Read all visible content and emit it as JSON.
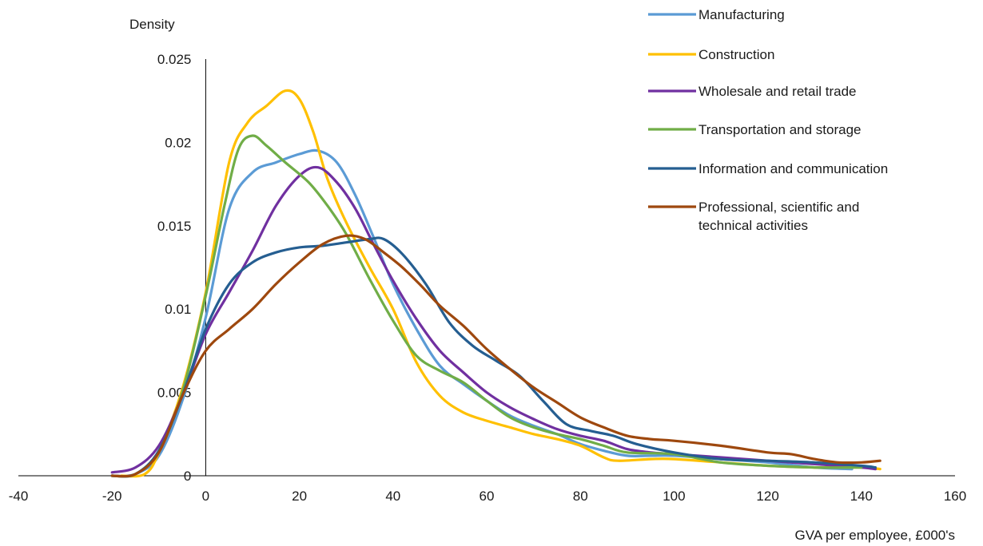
{
  "chart_data": {
    "type": "line",
    "title": "",
    "ylabel": "Density",
    "xlabel": "GVA per employee, £000's",
    "xlim": [
      -40,
      160
    ],
    "ylim": [
      0,
      0.025
    ],
    "xticks": [
      -40,
      -20,
      0,
      20,
      40,
      60,
      80,
      100,
      120,
      140,
      160
    ],
    "yticks": [
      0,
      0.005,
      0.01,
      0.015,
      0.02,
      0.025
    ],
    "xtick_labels": [
      "-40",
      "-20",
      "0",
      "20",
      "40",
      "60",
      "80",
      "100",
      "120",
      "140",
      "160"
    ],
    "ytick_labels": [
      "0",
      "0.005",
      "0.01",
      "0.015",
      "0.02",
      "0.025"
    ],
    "grid": false,
    "legend_position": "top-right",
    "series": [
      {
        "name": "Manufacturing",
        "color": "#5b9bd5",
        "points": [
          [
            -20,
            0
          ],
          [
            -15,
            0.0001
          ],
          [
            -10,
            0.0012
          ],
          [
            -5,
            0.0045
          ],
          [
            0,
            0.0095
          ],
          [
            5,
            0.016
          ],
          [
            10,
            0.0182
          ],
          [
            15,
            0.0188
          ],
          [
            20,
            0.0193
          ],
          [
            24,
            0.0195
          ],
          [
            28,
            0.0188
          ],
          [
            32,
            0.0168
          ],
          [
            36,
            0.0142
          ],
          [
            40,
            0.0115
          ],
          [
            45,
            0.0088
          ],
          [
            50,
            0.0066
          ],
          [
            55,
            0.0055
          ],
          [
            60,
            0.0045
          ],
          [
            65,
            0.0036
          ],
          [
            70,
            0.003
          ],
          [
            75,
            0.0025
          ],
          [
            80,
            0.0019
          ],
          [
            85,
            0.0015
          ],
          [
            90,
            0.0012
          ],
          [
            95,
            0.0012
          ],
          [
            100,
            0.0012
          ],
          [
            110,
            0.001
          ],
          [
            120,
            0.0008
          ],
          [
            130,
            0.0005
          ],
          [
            138,
            0.0004
          ]
        ]
      },
      {
        "name": "Construction",
        "color": "#ffc000",
        "points": [
          [
            -18,
            0
          ],
          [
            -13,
            0.0001
          ],
          [
            -10,
            0.0014
          ],
          [
            -5,
            0.0052
          ],
          [
            0,
            0.011
          ],
          [
            5,
            0.0188
          ],
          [
            9,
            0.0212
          ],
          [
            13,
            0.0222
          ],
          [
            17,
            0.0231
          ],
          [
            20,
            0.0226
          ],
          [
            23,
            0.0206
          ],
          [
            26,
            0.0178
          ],
          [
            30,
            0.0152
          ],
          [
            35,
            0.0125
          ],
          [
            40,
            0.01
          ],
          [
            45,
            0.0068
          ],
          [
            50,
            0.0048
          ],
          [
            55,
            0.0038
          ],
          [
            60,
            0.0033
          ],
          [
            65,
            0.0029
          ],
          [
            70,
            0.0025
          ],
          [
            75,
            0.0022
          ],
          [
            80,
            0.0018
          ],
          [
            85,
            0.0011
          ],
          [
            88,
            0.0009
          ],
          [
            95,
            0.001
          ],
          [
            100,
            0.001
          ],
          [
            110,
            0.0008
          ],
          [
            120,
            0.0006
          ],
          [
            130,
            0.0005
          ],
          [
            140,
            0.0005
          ],
          [
            144,
            0.0004
          ]
        ]
      },
      {
        "name": "Wholesale and retail trade",
        "color": "#7030a0",
        "points": [
          [
            -20,
            0.0002
          ],
          [
            -15,
            0.0005
          ],
          [
            -10,
            0.0018
          ],
          [
            -5,
            0.0048
          ],
          [
            0,
            0.0085
          ],
          [
            5,
            0.011
          ],
          [
            10,
            0.0135
          ],
          [
            15,
            0.0162
          ],
          [
            20,
            0.018
          ],
          [
            24,
            0.0185
          ],
          [
            28,
            0.0176
          ],
          [
            32,
            0.016
          ],
          [
            36,
            0.0138
          ],
          [
            40,
            0.0117
          ],
          [
            45,
            0.0094
          ],
          [
            50,
            0.0075
          ],
          [
            55,
            0.0062
          ],
          [
            60,
            0.005
          ],
          [
            65,
            0.0041
          ],
          [
            70,
            0.0034
          ],
          [
            75,
            0.0028
          ],
          [
            80,
            0.0024
          ],
          [
            85,
            0.0021
          ],
          [
            90,
            0.0016
          ],
          [
            95,
            0.0014
          ],
          [
            100,
            0.0013
          ],
          [
            110,
            0.0011
          ],
          [
            120,
            0.0009
          ],
          [
            130,
            0.0007
          ],
          [
            140,
            0.0005
          ],
          [
            143,
            0.0004
          ]
        ]
      },
      {
        "name": "Transportation and storage",
        "color": "#70ad47",
        "points": [
          [
            -20,
            0
          ],
          [
            -15,
            0.0001
          ],
          [
            -10,
            0.0015
          ],
          [
            -5,
            0.005
          ],
          [
            0,
            0.0108
          ],
          [
            4,
            0.0162
          ],
          [
            7,
            0.0196
          ],
          [
            10,
            0.0204
          ],
          [
            13,
            0.0198
          ],
          [
            17,
            0.0188
          ],
          [
            22,
            0.0176
          ],
          [
            26,
            0.0162
          ],
          [
            30,
            0.0145
          ],
          [
            35,
            0.0118
          ],
          [
            40,
            0.0093
          ],
          [
            45,
            0.0072
          ],
          [
            50,
            0.0063
          ],
          [
            55,
            0.0056
          ],
          [
            60,
            0.0045
          ],
          [
            65,
            0.0035
          ],
          [
            70,
            0.0029
          ],
          [
            75,
            0.0025
          ],
          [
            80,
            0.0022
          ],
          [
            85,
            0.0018
          ],
          [
            90,
            0.0014
          ],
          [
            100,
            0.0013
          ],
          [
            110,
            0.0008
          ],
          [
            120,
            0.0006
          ],
          [
            130,
            0.0005
          ],
          [
            140,
            0.0005
          ]
        ]
      },
      {
        "name": "Information and communication",
        "color": "#255e91",
        "points": [
          [
            -20,
            0
          ],
          [
            -15,
            0.0001
          ],
          [
            -10,
            0.0015
          ],
          [
            -5,
            0.0048
          ],
          [
            0,
            0.0088
          ],
          [
            5,
            0.0115
          ],
          [
            10,
            0.0128
          ],
          [
            15,
            0.0134
          ],
          [
            20,
            0.0137
          ],
          [
            25,
            0.0138
          ],
          [
            30,
            0.014
          ],
          [
            35,
            0.0142
          ],
          [
            38,
            0.0142
          ],
          [
            42,
            0.0133
          ],
          [
            47,
            0.0115
          ],
          [
            52,
            0.0092
          ],
          [
            57,
            0.0078
          ],
          [
            62,
            0.0069
          ],
          [
            67,
            0.006
          ],
          [
            72,
            0.0045
          ],
          [
            77,
            0.0031
          ],
          [
            82,
            0.0027
          ],
          [
            87,
            0.0024
          ],
          [
            92,
            0.0019
          ],
          [
            100,
            0.0014
          ],
          [
            110,
            0.001
          ],
          [
            120,
            0.0009
          ],
          [
            130,
            0.0008
          ],
          [
            140,
            0.0006
          ],
          [
            143,
            0.0005
          ]
        ]
      },
      {
        "name": "Professional, scientific and technical activities",
        "color": "#9e480e",
        "points": [
          [
            -20,
            0
          ],
          [
            -15,
            0.0001
          ],
          [
            -10,
            0.0014
          ],
          [
            -5,
            0.0048
          ],
          [
            0,
            0.0075
          ],
          [
            5,
            0.0088
          ],
          [
            10,
            0.01
          ],
          [
            15,
            0.0115
          ],
          [
            20,
            0.0128
          ],
          [
            25,
            0.0139
          ],
          [
            30,
            0.0144
          ],
          [
            34,
            0.0142
          ],
          [
            38,
            0.0134
          ],
          [
            42,
            0.0125
          ],
          [
            46,
            0.0114
          ],
          [
            50,
            0.0102
          ],
          [
            55,
            0.009
          ],
          [
            60,
            0.0076
          ],
          [
            65,
            0.0064
          ],
          [
            70,
            0.0053
          ],
          [
            75,
            0.0044
          ],
          [
            80,
            0.0035
          ],
          [
            85,
            0.0029
          ],
          [
            90,
            0.0024
          ],
          [
            95,
            0.0022
          ],
          [
            100,
            0.0021
          ],
          [
            110,
            0.0018
          ],
          [
            120,
            0.0014
          ],
          [
            125,
            0.0013
          ],
          [
            130,
            0.001
          ],
          [
            135,
            0.0008
          ],
          [
            140,
            0.0008
          ],
          [
            144,
            0.0009
          ]
        ]
      }
    ]
  }
}
